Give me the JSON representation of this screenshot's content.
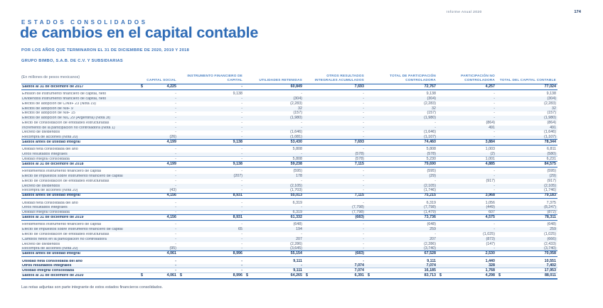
{
  "page_header": {
    "report_name": "Informe Anual 2020",
    "page_number": "174"
  },
  "title_block": {
    "eyebrow": "ESTADOS CONSOLIDADOS",
    "title": "de cambios en el capital contable",
    "period": "POR LOS AÑOS QUE TERMINARON EL 31 DE DICIEMBRE DE 2020, 2019 Y 2018",
    "company": "GRUPO BIMBO, S.A.B. DE C.V. Y SUBSIDIARIAS",
    "units_note": "(En millones de pesos mexicanos)"
  },
  "colors": {
    "accent_blue": "#2f6cb6",
    "header_blue": "#4a80c2",
    "dark_navy": "#1c3a66",
    "body_slate": "#4a5a74",
    "stripe": "#eef4fa"
  },
  "table": {
    "columns": [
      "CAPITAL SOCIAL",
      "INSTRUMENTO FINANCIERO DE CAPITAL",
      "UTILIDADES RETENIDAS",
      "OTROS RESULTADOS INTEGRALES ACUMULADOS",
      "TOTAL DE PARTICIPACIÓN CONTROLADORA",
      "PARTICIPACIÓN NO CONTROLADORA",
      "TOTAL DEL CAPITAL CONTABLE"
    ],
    "rows": [
      {
        "label": "Saldos al 31 de diciembre de 2017",
        "values": [
          "4,225",
          "-",
          "60,849",
          "7,693",
          "72,767",
          "4,257",
          "77,024"
        ],
        "style": "opening",
        "dollar": "first"
      },
      {
        "gap": true
      },
      {
        "label": "Emisión de instrumento financiero de capital, neto",
        "values": [
          "-",
          "9,138",
          "-",
          "-",
          "9,138",
          "-",
          "9,138"
        ],
        "style": "normal"
      },
      {
        "label": "Dividendos instrumento financiero de capital, neto",
        "values": [
          "-",
          "-",
          "(304)",
          "-",
          "(304)",
          "-",
          "(304)"
        ],
        "style": "normal"
      },
      {
        "label": "Efectos de adopción de CINIIF 23 (Nota 19)",
        "values": [
          "-",
          "-",
          "(2,283)",
          "-",
          "(2,283)",
          "-",
          "(2,283)"
        ],
        "style": "normal"
      },
      {
        "label": "Efectos de adopción de NIIF 9",
        "values": [
          "-",
          "-",
          "32",
          "-",
          "32",
          "-",
          "32"
        ],
        "style": "normal"
      },
      {
        "label": "Efectos de adopción de NIIF 15",
        "values": [
          "-",
          "-",
          "(157)",
          "-",
          "(157)",
          "-",
          "(157)"
        ],
        "style": "normal"
      },
      {
        "label": "Efectos de adopción de NIC 29 (Argentina) (Nota 3f)",
        "values": [
          "-",
          "-",
          "(1,980)",
          "-",
          "(1,980)",
          "-",
          "(1,980)"
        ],
        "style": "normal"
      },
      {
        "label": "Efecto de consolidación de entidades estructuradas",
        "values": [
          "-",
          "-",
          "-",
          "-",
          "-",
          "(864)",
          "(864)"
        ],
        "style": "normal"
      },
      {
        "label": "Incremento de la participación no controladora (Nota 1)",
        "values": [
          "-",
          "-",
          "-",
          "-",
          "-",
          "491",
          "491"
        ],
        "style": "normal"
      },
      {
        "label": "Decreto de dividendos",
        "values": [
          "-",
          "-",
          "(1,646)",
          "-",
          "(1,646)",
          "-",
          "(1,646)"
        ],
        "style": "normal"
      },
      {
        "label": "Recompra de acciones (Nota 20)",
        "values": [
          "(26)",
          "-",
          "(1,081)",
          "-",
          "(1,107)",
          "-",
          "(1,107)"
        ],
        "style": "normal"
      },
      {
        "label": "Saldos antes de utilidad integral",
        "values": [
          "4,199",
          "9,138",
          "53,430",
          "7,693",
          "74,460",
          "3,884",
          "78,344"
        ],
        "style": "subtotal"
      },
      {
        "gap": true
      },
      {
        "label": "Utilidad neta consolidada del año",
        "values": [
          "-",
          "-",
          "5,808",
          "-",
          "5,808",
          "1,003",
          "6,811"
        ],
        "style": "normal"
      },
      {
        "label": "Otros resultados integrales",
        "values": [
          "-",
          "-",
          "-",
          "(578)",
          "(578)",
          "(2)",
          "(580)"
        ],
        "style": "normal"
      },
      {
        "label": "Utilidad integral consolidada",
        "values": [
          "-",
          "-",
          "5,808",
          "(578)",
          "5,230",
          "1,001",
          "6,231"
        ],
        "style": "integral"
      },
      {
        "label": "Saldos al 31 de diciembre de 2018",
        "values": [
          "4,199",
          "9,138",
          "59,238",
          "7,115",
          "79,690",
          "4,885",
          "84,575"
        ],
        "style": "subtotal"
      },
      {
        "gap": true
      },
      {
        "label": "Rendimientos instrumento financiero de capital",
        "values": [
          "-",
          "-",
          "(595)",
          "-",
          "(595)",
          "-",
          "(595)"
        ],
        "style": "normal"
      },
      {
        "label": "Efecto de impuestos sobre instrumento financiero de capital",
        "values": [
          "-",
          "(207)",
          "178",
          "-",
          "(29)",
          "-",
          "(29)"
        ],
        "style": "normal"
      },
      {
        "label": "Efecto de consolidación de entidades estructuradas",
        "values": [
          "-",
          "-",
          "-",
          "-",
          "-",
          "(917)",
          "(917)"
        ],
        "style": "normal"
      },
      {
        "label": "Decreto de dividendos",
        "values": [
          "-",
          "-",
          "(2,105)",
          "-",
          "(2,105)",
          "-",
          "(2,105)"
        ],
        "style": "normal"
      },
      {
        "label": "Recompra de acciones (Nota 20)",
        "values": [
          "(43)",
          "-",
          "(1,703)",
          "-",
          "(1,746)",
          "-",
          "(1,746)"
        ],
        "style": "normal"
      },
      {
        "label": "Saldos antes de utilidad integral",
        "values": [
          "4,156",
          "8,931",
          "55,013",
          "7,115",
          "75,215",
          "3,968",
          "79,183"
        ],
        "style": "subtotal"
      },
      {
        "gap": true
      },
      {
        "label": "Utilidad neta consolidada del año",
        "values": [
          "-",
          "-",
          "6,319",
          "-",
          "6,319",
          "1,056",
          "7,375"
        ],
        "style": "normal"
      },
      {
        "label": "Otros resultados integrales",
        "values": [
          "-",
          "-",
          "-",
          "(7,798)",
          "(7,798)",
          "(449)",
          "(8,247)"
        ],
        "style": "normal"
      },
      {
        "label": "Utilidad integral consolidada",
        "values": [
          "-",
          "-",
          "6,319",
          "(7,798)",
          "(1,479)",
          "607",
          "(872)"
        ],
        "style": "integral"
      },
      {
        "label": "Saldos al 31 de diciembre de 2019",
        "values": [
          "4,156",
          "8,931",
          "61,332",
          "(683)",
          "73,736",
          "4,575",
          "78,311"
        ],
        "style": "subtotal"
      },
      {
        "gap": true
      },
      {
        "label": "Rendimientos instrumento financiero de capital",
        "values": [
          "-",
          "-",
          "(648)",
          "-",
          "(648)",
          "-",
          "(648)"
        ],
        "style": "normal"
      },
      {
        "label": "Efecto de impuestos sobre instrumento financiero de capital",
        "values": [
          "-",
          "65",
          "194",
          "-",
          "259",
          "-",
          "259"
        ],
        "style": "normal"
      },
      {
        "label": "Efecto de consolidación de entidades estructuradas",
        "values": [
          "-",
          "-",
          "-",
          "-",
          "-",
          "(1,025)",
          "(1,025)"
        ],
        "style": "normal"
      },
      {
        "label": "Cambios netos en la participación no controladora",
        "values": [
          "-",
          "-",
          "207",
          "-",
          "207",
          "(873)",
          "(666)"
        ],
        "style": "normal"
      },
      {
        "label": "Decreto de dividendos",
        "values": [
          "-",
          "-",
          "(2,286)",
          "-",
          "(2,286)",
          "(147)",
          "(2,433)"
        ],
        "style": "normal"
      },
      {
        "label": "Recompra de acciones (Nota 20)",
        "values": [
          "(95)",
          "-",
          "(3,645)",
          "-",
          "(3,740)",
          "-",
          "(3,740)"
        ],
        "style": "normal"
      },
      {
        "label": "Saldos antes de utilidad integral",
        "values": [
          "4,061",
          "8,996",
          "55,154",
          "(683)",
          "67,528",
          "2,530",
          "70,058"
        ],
        "style": "subtotal"
      },
      {
        "gap": true
      },
      {
        "label": "Utilidad neta consolidada del año",
        "values": [
          "-",
          "-",
          "9,111",
          "-",
          "9,111",
          "1,440",
          "10,551"
        ],
        "style": "boldnormal"
      },
      {
        "label": "Otros resultados integrales",
        "values": [
          "-",
          "-",
          "-",
          "7,074",
          "7,074",
          "328",
          "7,402"
        ],
        "style": "boldnormal"
      },
      {
        "label": "Utilidad integral consolidada",
        "values": [
          "-",
          "-",
          "9,111",
          "7,074",
          "16,185",
          "1,768",
          "17,953"
        ],
        "style": "boldintegral"
      },
      {
        "label": "Saldos al 31 de diciembre de 2020",
        "values": [
          "4,061",
          "8,996",
          "64,265",
          "6,391",
          "83,713",
          "4,298",
          "88,011"
        ],
        "style": "closing",
        "dollar": "all"
      }
    ]
  },
  "footnote": "Las notas adjuntas son parte integrante de estos estados financieros consolidados."
}
